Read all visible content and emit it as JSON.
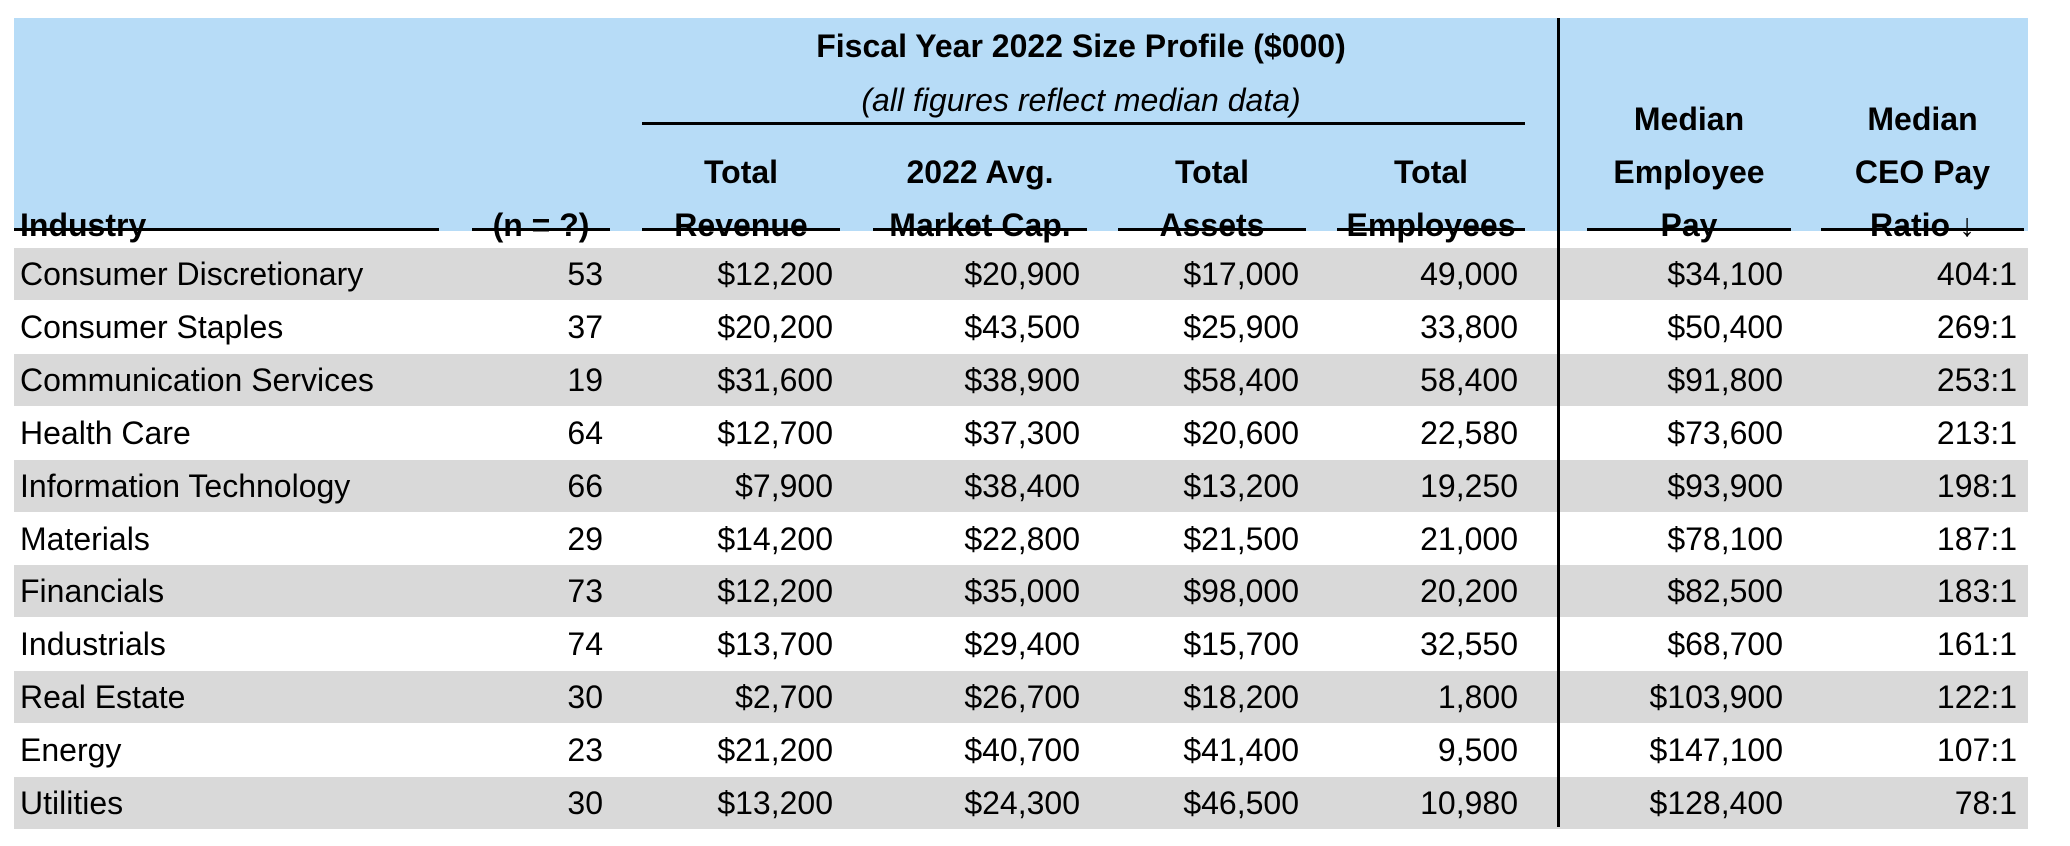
{
  "table": {
    "group_title": "Fiscal Year 2022 Size Profile ($000)",
    "group_subtitle": "(all figures reflect median data)",
    "headers": {
      "industry": "Industry",
      "n": "(n = ?)",
      "revenue": [
        "Total",
        "Revenue"
      ],
      "market_cap": [
        "2022 Avg.",
        "Market Cap."
      ],
      "assets": [
        "Total",
        "Assets"
      ],
      "employees": [
        "Total",
        "Employees"
      ],
      "employee_pay": [
        "Median",
        "Employee",
        "Pay"
      ],
      "ceo_ratio": [
        "Median",
        "CEO Pay",
        "Ratio ↓"
      ]
    },
    "rows": [
      {
        "industry": "Consumer Discretionary",
        "n": "53",
        "revenue": "$12,200",
        "market_cap": "$20,900",
        "assets": "$17,000",
        "employees": "49,000",
        "employee_pay": "$34,100",
        "ceo_ratio": "404:1"
      },
      {
        "industry": "Consumer Staples",
        "n": "37",
        "revenue": "$20,200",
        "market_cap": "$43,500",
        "assets": "$25,900",
        "employees": "33,800",
        "employee_pay": "$50,400",
        "ceo_ratio": "269:1"
      },
      {
        "industry": "Communication Services",
        "n": "19",
        "revenue": "$31,600",
        "market_cap": "$38,900",
        "assets": "$58,400",
        "employees": "58,400",
        "employee_pay": "$91,800",
        "ceo_ratio": "253:1"
      },
      {
        "industry": "Health Care",
        "n": "64",
        "revenue": "$12,700",
        "market_cap": "$37,300",
        "assets": "$20,600",
        "employees": "22,580",
        "employee_pay": "$73,600",
        "ceo_ratio": "213:1"
      },
      {
        "industry": "Information Technology",
        "n": "66",
        "revenue": "$7,900",
        "market_cap": "$38,400",
        "assets": "$13,200",
        "employees": "19,250",
        "employee_pay": "$93,900",
        "ceo_ratio": "198:1"
      },
      {
        "industry": "Materials",
        "n": "29",
        "revenue": "$14,200",
        "market_cap": "$22,800",
        "assets": "$21,500",
        "employees": "21,000",
        "employee_pay": "$78,100",
        "ceo_ratio": "187:1"
      },
      {
        "industry": "Financials",
        "n": "73",
        "revenue": "$12,200",
        "market_cap": "$35,000",
        "assets": "$98,000",
        "employees": "20,200",
        "employee_pay": "$82,500",
        "ceo_ratio": "183:1"
      },
      {
        "industry": "Industrials",
        "n": "74",
        "revenue": "$13,700",
        "market_cap": "$29,400",
        "assets": "$15,700",
        "employees": "32,550",
        "employee_pay": "$68,700",
        "ceo_ratio": "161:1"
      },
      {
        "industry": "Real Estate",
        "n": "30",
        "revenue": "$2,700",
        "market_cap": "$26,700",
        "assets": "$18,200",
        "employees": "1,800",
        "employee_pay": "$103,900",
        "ceo_ratio": "122:1"
      },
      {
        "industry": "Energy",
        "n": "23",
        "revenue": "$21,200",
        "market_cap": "$40,700",
        "assets": "$41,400",
        "employees": "9,500",
        "employee_pay": "$147,100",
        "ceo_ratio": "107:1"
      },
      {
        "industry": "Utilities",
        "n": "30",
        "revenue": "$13,200",
        "market_cap": "$24,300",
        "assets": "$46,500",
        "employees": "10,980",
        "employee_pay": "$128,400",
        "ceo_ratio": "78:1"
      }
    ]
  },
  "colors": {
    "header_background": "#b7dcf7",
    "shaded_row": "#d9d9d9",
    "rule": "#000000"
  }
}
